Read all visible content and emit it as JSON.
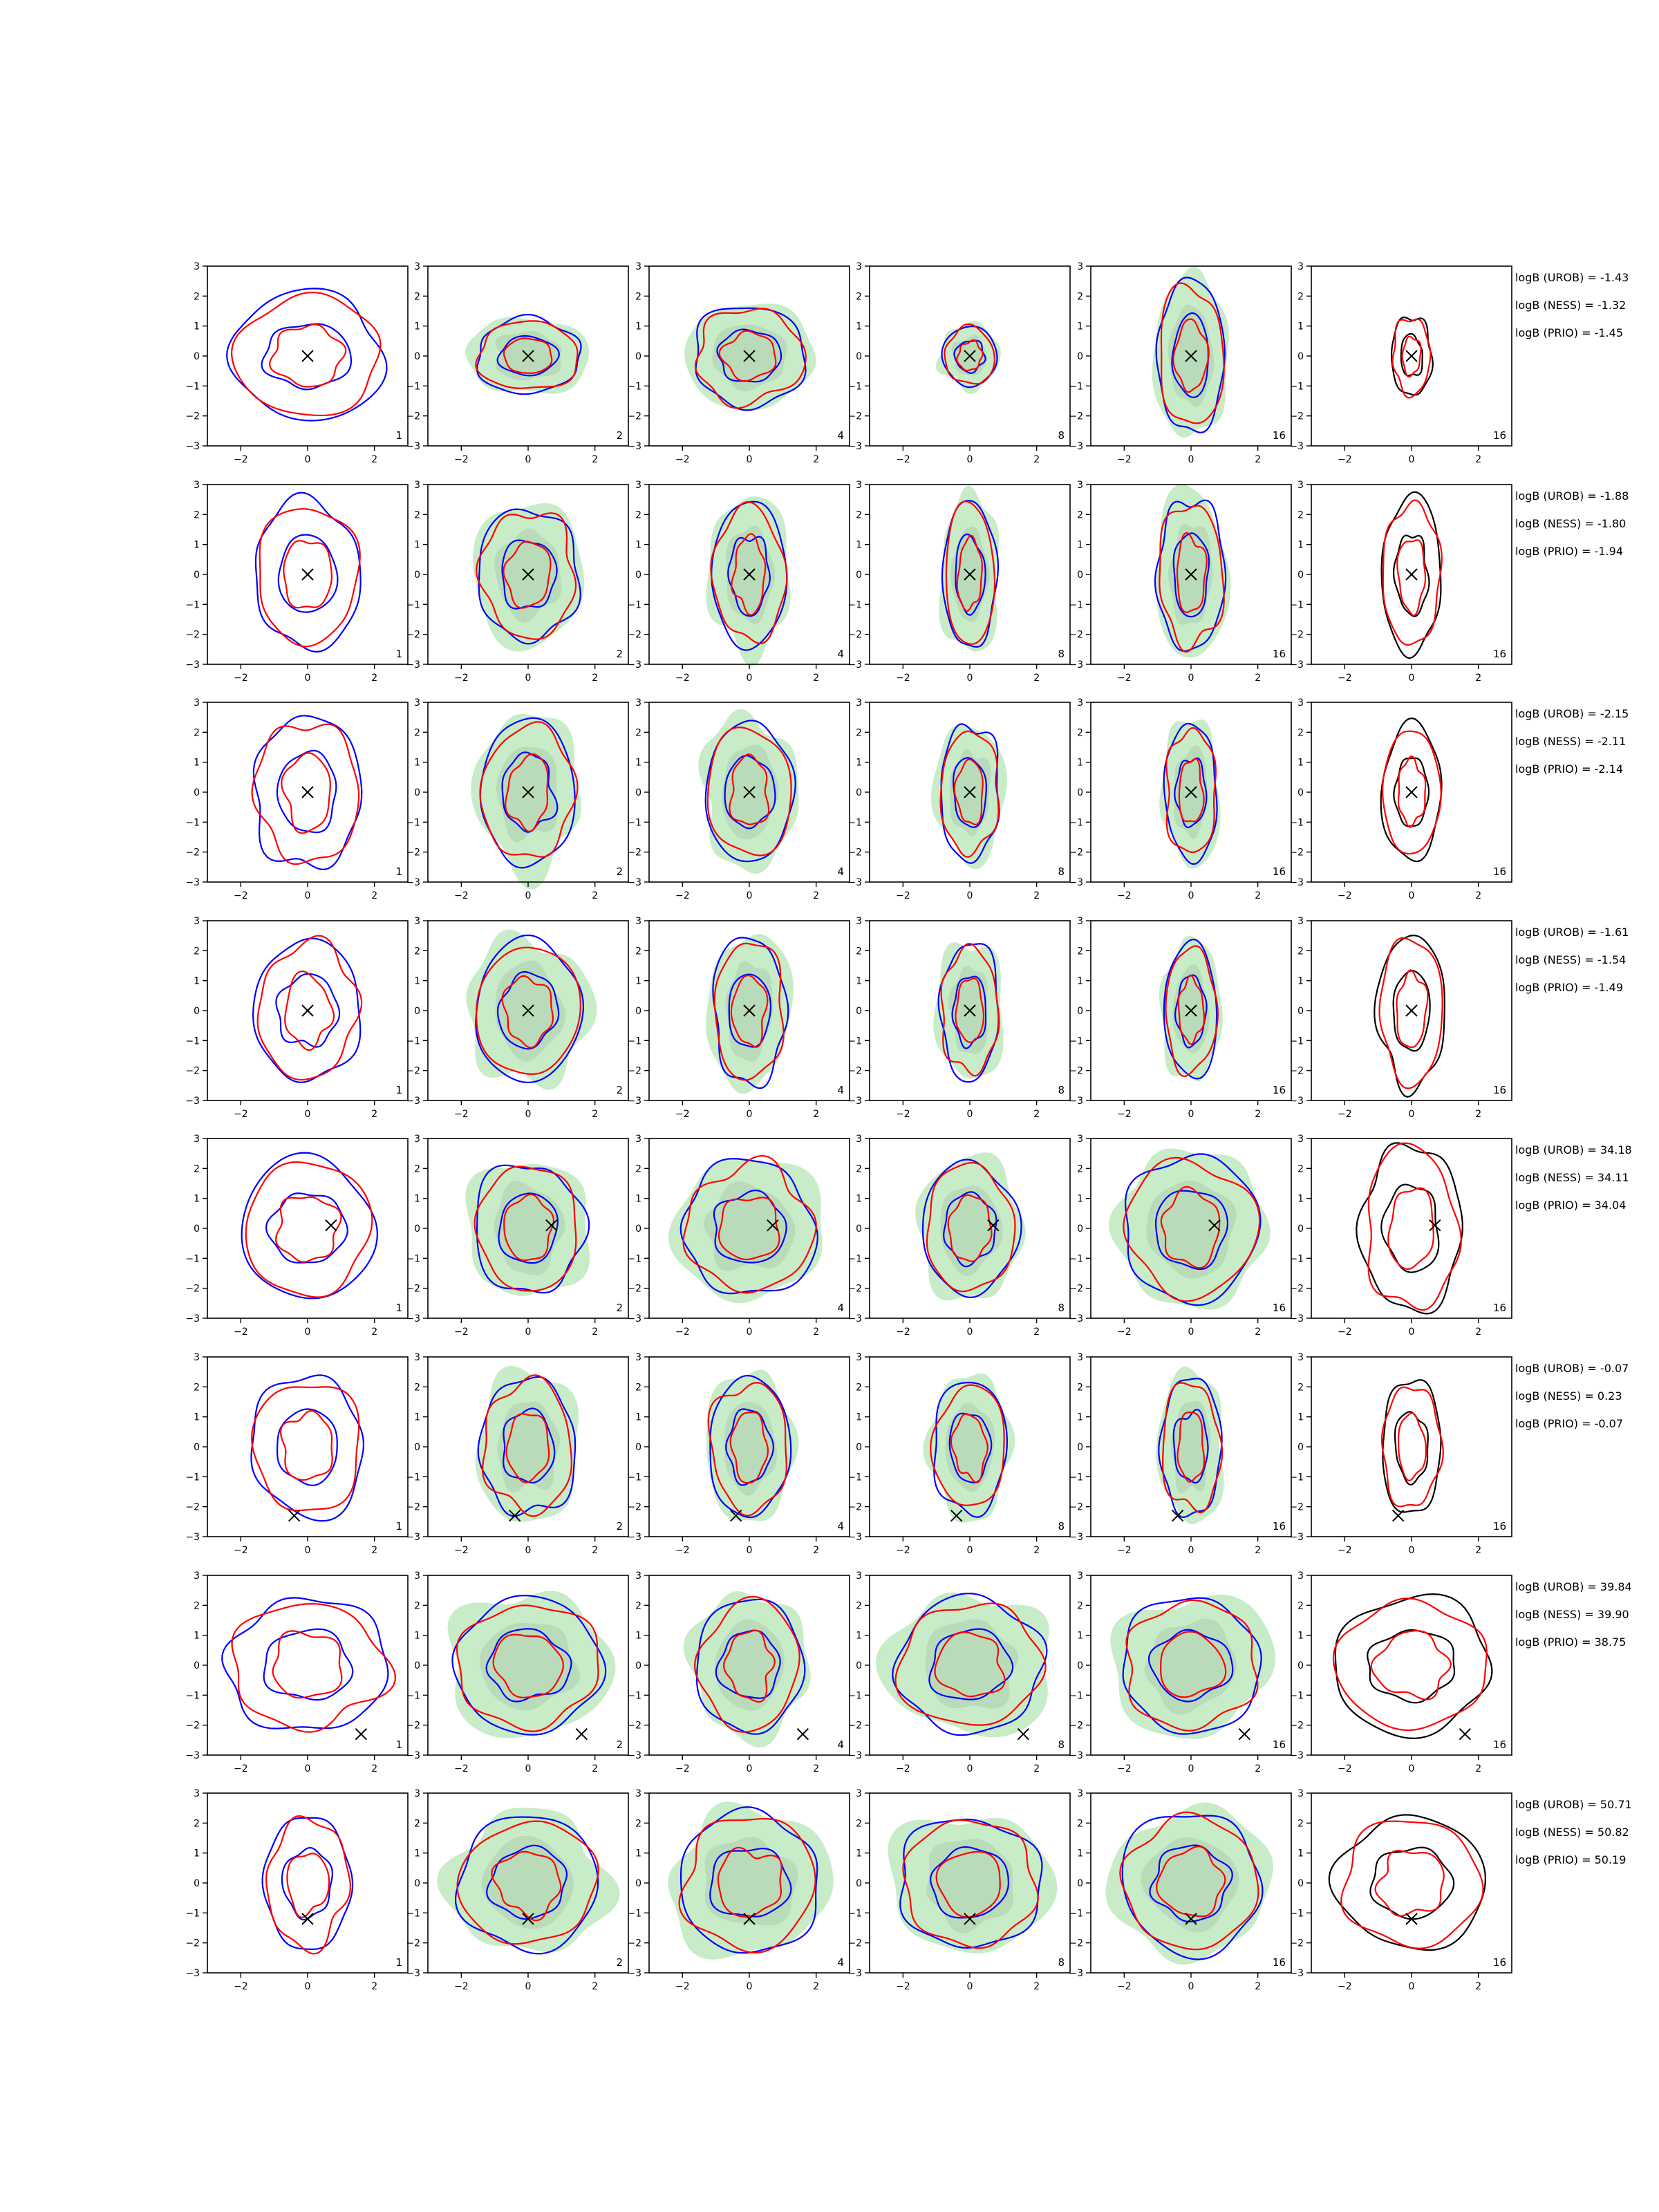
{
  "chart_data": {
    "type": "contour",
    "layout": {
      "rows": 8,
      "cols": 6
    },
    "axes": {
      "xlim": [
        -3,
        3
      ],
      "ylim": [
        -3,
        3
      ],
      "xticks": [
        -2,
        0,
        2
      ],
      "yticks": [
        -3,
        -2,
        -1,
        0,
        1,
        2,
        3
      ]
    },
    "colors": {
      "uROB": "#0000ff",
      "nESS": "#ff0000",
      "prior": "#000000",
      "fill": "#b4e6b4",
      "marker": "#000000"
    },
    "panel_labels": [
      "1",
      "2",
      "4",
      "8",
      "16",
      "16"
    ],
    "rows": [
      {
        "marker": [
          0,
          0
        ],
        "annotations": [
          "logB (UROB) = -1.43",
          "logB (NESS) = -1.32",
          "logB (PRIO) = -1.45"
        ],
        "contours": [
          [
            2.3,
            1.9
          ],
          [
            1.6,
            1.1
          ],
          [
            1.7,
            1.5
          ],
          [
            0.8,
            0.9
          ],
          [
            1.0,
            2.3
          ],
          [
            0.6,
            1.2
          ]
        ]
      },
      {
        "marker": [
          0,
          0
        ],
        "annotations": [
          "logB (UROB) = -1.88",
          "logB (NESS) = -1.80",
          "logB (PRIO) = -1.94"
        ],
        "contours": [
          [
            1.6,
            2.2
          ],
          [
            1.5,
            2.0
          ],
          [
            1.1,
            2.2
          ],
          [
            0.8,
            2.2
          ],
          [
            1.0,
            2.3
          ],
          [
            0.9,
            2.3
          ]
        ]
      },
      {
        "marker": [
          0,
          0
        ],
        "annotations": [
          "logB (UROB) = -2.15",
          "logB (NESS) = -2.11",
          "logB (PRIO) = -2.14"
        ],
        "contours": [
          [
            1.6,
            2.3
          ],
          [
            1.4,
            2.2
          ],
          [
            1.3,
            2.1
          ],
          [
            0.9,
            2.0
          ],
          [
            0.8,
            2.0
          ],
          [
            0.9,
            2.0
          ]
        ]
      },
      {
        "marker": [
          0,
          0
        ],
        "annotations": [
          "logB (UROB) = -1.61",
          "logB (NESS) = -1.54",
          "logB (PRIO) = -1.49"
        ],
        "contours": [
          [
            1.6,
            2.1
          ],
          [
            1.6,
            2.1
          ],
          [
            1.1,
            2.2
          ],
          [
            0.9,
            2.0
          ],
          [
            0.8,
            2.0
          ],
          [
            1.0,
            2.3
          ]
        ]
      },
      {
        "marker": [
          0.7,
          0.1
        ],
        "annotations": [
          "logB (UROB) = 34.18",
          "logB (NESS) = 34.11",
          "logB (PRIO) = 34.04"
        ],
        "contours": [
          [
            2.0,
            2.1
          ],
          [
            1.6,
            2.0
          ],
          [
            2.0,
            2.0
          ],
          [
            1.4,
            2.0
          ],
          [
            2.0,
            2.2
          ],
          [
            1.5,
            2.5
          ]
        ]
      },
      {
        "marker": [
          -0.4,
          -2.3
        ],
        "annotations": [
          "logB (UROB) = -0.07",
          "logB (NESS) = 0.23",
          "logB (PRIO) = -0.07"
        ],
        "contours": [
          [
            1.7,
            2.1
          ],
          [
            1.4,
            2.1
          ],
          [
            1.2,
            2.1
          ],
          [
            1.1,
            2.0
          ],
          [
            0.9,
            2.1
          ],
          [
            0.9,
            2.0
          ]
        ]
      },
      {
        "marker": [
          1.6,
          -2.3
        ],
        "annotations": [
          "logB (UROB) = 39.84",
          "logB (NESS) = 39.90",
          "logB (PRIO) = 38.75"
        ],
        "contours": [
          [
            2.4,
            2.0
          ],
          [
            2.2,
            2.0
          ],
          [
            1.6,
            2.0
          ],
          [
            2.2,
            2.0
          ],
          [
            2.1,
            2.0
          ],
          [
            2.4,
            2.0
          ]
        ]
      },
      {
        "marker": [
          0,
          -1.2
        ],
        "annotations": [
          "logB (UROB) = 50.71",
          "logB (NESS) = 50.82",
          "logB (PRIO) = 50.19"
        ],
        "contours": [
          [
            1.3,
            2.0
          ],
          [
            2.1,
            2.0
          ],
          [
            2.1,
            2.1
          ],
          [
            2.1,
            2.0
          ],
          [
            2.1,
            2.1
          ],
          [
            2.2,
            2.0
          ]
        ]
      }
    ]
  }
}
